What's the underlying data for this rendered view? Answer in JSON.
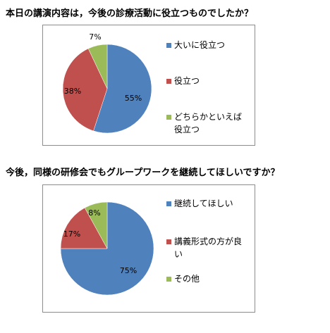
{
  "colors": {
    "blue": "#4f81bd",
    "red": "#c0504d",
    "green": "#9bbb59",
    "border": "#8c8c8c"
  },
  "chart_data": [
    {
      "type": "pie",
      "title": "本日の講演内容は，今後の診療活動に役立つものでしたか？",
      "categories": [
        "大いに役立つ",
        "役立つ",
        "どちらかといえば役立つ"
      ],
      "legend_lines": [
        [
          "大いに役立つ"
        ],
        [
          "役立つ"
        ],
        [
          "どちらかといえば",
          "役立つ"
        ]
      ],
      "values": [
        55,
        38,
        7
      ],
      "labels": [
        "55%",
        "38%",
        "7%"
      ],
      "colors": [
        "#4f81bd",
        "#c0504d",
        "#9bbb59"
      ],
      "legend_position": "right"
    },
    {
      "type": "pie",
      "title": "今後，同様の研修会でもグループワークを継続してほしいですか？",
      "categories": [
        "継続してほしい",
        "講義形式の方が良い",
        "その他"
      ],
      "legend_lines": [
        [
          "継続してほしい"
        ],
        [
          "講義形式の方が良",
          "い"
        ],
        [
          "その他"
        ]
      ],
      "values": [
        75,
        17,
        8
      ],
      "labels": [
        "75%",
        "17%",
        "8%"
      ],
      "colors": [
        "#4f81bd",
        "#c0504d",
        "#9bbb59"
      ],
      "legend_position": "right"
    }
  ]
}
